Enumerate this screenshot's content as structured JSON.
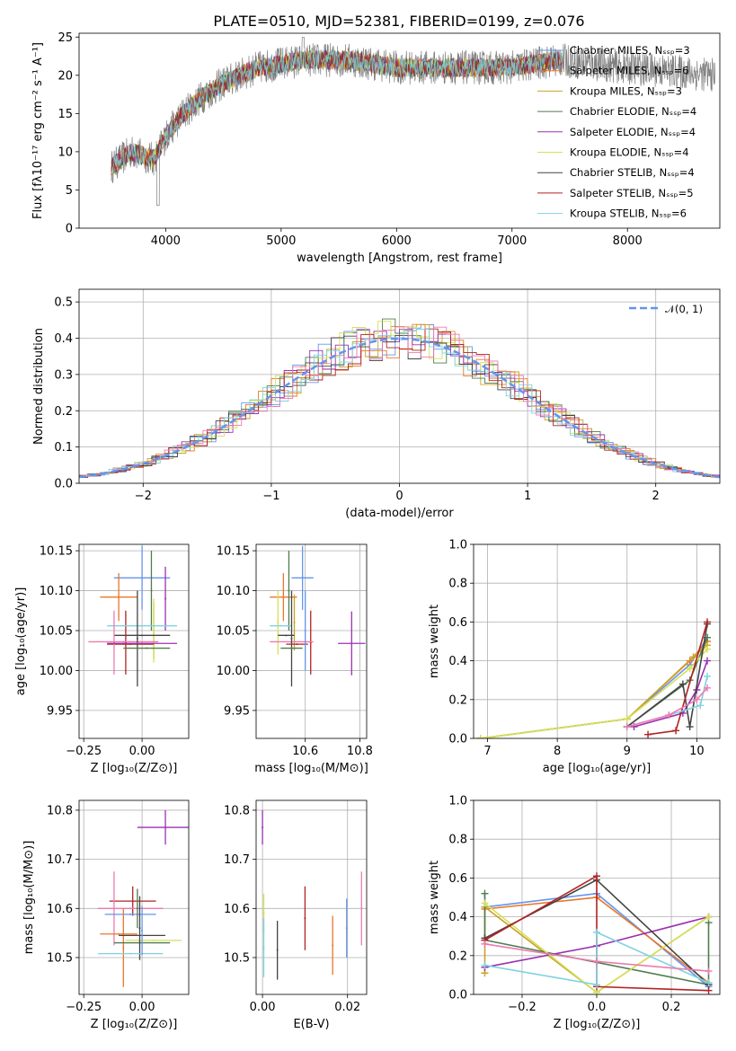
{
  "title": "PLATE=0510, MJD=52381, FIBERID=0199, z=0.076",
  "chart_data": [
    {
      "type": "line",
      "id": "spectrum",
      "xlabel": "wavelength [Angstrom, rest frame]",
      "ylabel": "Flux [fλ10⁻¹⁷ erg cm⁻² s⁻¹ A⁻¹]",
      "xlim": [
        3250,
        8800
      ],
      "ylim": [
        0,
        25.5
      ],
      "xticks": [
        4000,
        5000,
        6000,
        7000,
        8000
      ],
      "yticks": [
        0,
        5,
        10,
        15,
        20,
        25
      ],
      "data_xrange": [
        3530,
        7430
      ],
      "data_range_grey": [
        3530,
        8760
      ],
      "legend": [
        {
          "name": "Chabrier MILES, Nₛₛₚ=3",
          "color": "#6495ed"
        },
        {
          "name": "Salpeter MILES, Nₛₛₚ=6",
          "color": "#e9762b"
        },
        {
          "name": "Kroupa MILES, Nₛₛₚ=3",
          "color": "#c9a227"
        },
        {
          "name": "Chabrier ELODIE, Nₛₛₚ=4",
          "color": "#4f7c4f"
        },
        {
          "name": "Salpeter ELODIE, Nₛₛₚ=4",
          "color": "#9b30b0"
        },
        {
          "name": "Kroupa ELODIE, Nₛₛₚ=4",
          "color": "#d4e157"
        },
        {
          "name": "Chabrier STELIB, Nₛₛₚ=4",
          "color": "#444444"
        },
        {
          "name": "Salpeter STELIB, Nₛₛₚ=5",
          "color": "#b22222"
        },
        {
          "name": "Kroupa STELIB, Nₛₛₚ=6",
          "color": "#7fd3e0"
        }
      ],
      "legend_placement": "upper right",
      "continuum": [
        [
          3530,
          8
        ],
        [
          3700,
          10
        ],
        [
          3900,
          9
        ],
        [
          4000,
          12
        ],
        [
          4150,
          15
        ],
        [
          4300,
          17
        ],
        [
          4500,
          19
        ],
        [
          4800,
          21
        ],
        [
          5200,
          22
        ],
        [
          5600,
          22
        ],
        [
          6000,
          21
        ],
        [
          6500,
          21
        ],
        [
          7000,
          21
        ],
        [
          7400,
          22
        ],
        [
          7700,
          21.5
        ],
        [
          8000,
          21
        ],
        [
          8400,
          20.5
        ],
        [
          8760,
          20
        ]
      ]
    },
    {
      "type": "area",
      "id": "residual_histogram",
      "xlabel": "(data-model)/error",
      "ylabel": "Normed distribution",
      "xlim": [
        -2.5,
        2.5
      ],
      "ylim": [
        0,
        0.535
      ],
      "xticks": [
        -2,
        -1,
        0,
        1,
        2
      ],
      "xtick_labels": [
        "−2",
        "−1",
        "0",
        "1",
        "2"
      ],
      "yticks": [
        0.0,
        0.1,
        0.2,
        0.3,
        0.4,
        0.5
      ],
      "ytick_labels": [
        "0.0",
        "0.1",
        "0.2",
        "0.3",
        "0.4",
        "0.5"
      ],
      "grid": true,
      "legend": [
        {
          "name": "𝒩(0, 1)",
          "color": "#6495ed",
          "style": "dashed"
        }
      ],
      "legend_placement": "upper right",
      "bin_width": 0.1
    },
    {
      "type": "scatter",
      "id": "age_vs_Z",
      "xlabel": "Z [log₁₀(Z/Z⊙)]",
      "ylabel": "age  [log₁₀(age/yr)]",
      "xlim": [
        -0.27,
        0.2
      ],
      "ylim": [
        9.915,
        10.158
      ],
      "xticks": [
        -0.25,
        0.0
      ],
      "xtick_labels": [
        "−0.25",
        "0.00"
      ],
      "yticks": [
        9.95,
        10.0,
        10.05,
        10.1,
        10.15
      ],
      "ytick_labels": [
        "9.95",
        "10.00",
        "10.05",
        "10.10",
        "10.15"
      ],
      "grid": true,
      "points": [
        {
          "x": 0.0,
          "xerr": 0.12,
          "y": 10.116,
          "yerr": 0.04,
          "color": "#6495ed"
        },
        {
          "x": -0.1,
          "xerr": 0.08,
          "y": 10.092,
          "yerr": 0.03,
          "color": "#e9762b"
        },
        {
          "x": 0.05,
          "xerr": 0.0,
          "y": 10.05,
          "yerr": 0.035,
          "color": "#c9a227"
        },
        {
          "x": 0.04,
          "xerr": 0.0,
          "y": 10.1,
          "yerr": 0.05,
          "color": "#4f7c4f"
        },
        {
          "x": 0.1,
          "xerr": 0.0,
          "y": 10.09,
          "yerr": 0.04,
          "color": "#9b30b0"
        },
        {
          "x": 0.05,
          "xerr": 0.0,
          "y": 10.05,
          "yerr": 0.04,
          "color": "#d4e157"
        },
        {
          "x": 0.0,
          "xerr": 0.12,
          "y": 10.044,
          "yerr": 0.0,
          "color": "#444444"
        },
        {
          "x": -0.05,
          "xerr": 0.1,
          "y": 10.033,
          "yerr": 0.0,
          "color": "#b22222"
        },
        {
          "x": -0.07,
          "xerr": 0.0,
          "y": 10.035,
          "yerr": 0.04,
          "color": "#b22222"
        },
        {
          "x": 0.0,
          "xerr": 0.15,
          "y": 10.056,
          "yerr": 0.0,
          "color": "#7fd3e0"
        },
        {
          "x": -0.12,
          "xerr": 0.0,
          "y": 10.035,
          "yerr": 0.04,
          "color": "#ec7ab0"
        },
        {
          "x": -0.08,
          "xerr": 0.15,
          "y": 10.036,
          "yerr": 0.0,
          "color": "#ec7ab0"
        },
        {
          "x": -0.02,
          "xerr": 0.0,
          "y": 10.04,
          "yerr": 0.06,
          "color": "#444444"
        },
        {
          "x": 0.02,
          "xerr": 0.1,
          "y": 10.028,
          "yerr": 0.0,
          "color": "#4f7c4f"
        },
        {
          "x": 0.0,
          "xerr": 0.15,
          "y": 10.034,
          "yerr": 0.0,
          "color": "#9b30b0"
        }
      ]
    },
    {
      "type": "scatter",
      "id": "age_vs_mass",
      "xlabel": "mass [log₁₀(M/M⊙)]",
      "ylabel": "",
      "xlim": [
        10.42,
        10.825
      ],
      "ylim": [
        9.915,
        10.158
      ],
      "xticks": [
        10.6,
        10.8
      ],
      "xtick_labels": [
        "10.6",
        "10.8"
      ],
      "yticks": [
        9.95,
        10.0,
        10.05,
        10.1,
        10.15
      ],
      "ytick_labels": [
        "9.95",
        "10.00",
        "10.05",
        "10.10",
        "10.15"
      ],
      "grid": true,
      "points": [
        {
          "x": 10.59,
          "xerr": 0.04,
          "y": 10.116,
          "yerr": 0.04,
          "color": "#6495ed"
        },
        {
          "x": 10.52,
          "xerr": 0.05,
          "y": 10.092,
          "yerr": 0.03,
          "color": "#e9762b"
        },
        {
          "x": 10.56,
          "xerr": 0.0,
          "y": 10.06,
          "yerr": 0.035,
          "color": "#c9a227"
        },
        {
          "x": 10.54,
          "xerr": 0.0,
          "y": 10.1,
          "yerr": 0.05,
          "color": "#4f7c4f"
        },
        {
          "x": 10.77,
          "xerr": 0.05,
          "y": 10.034,
          "yerr": 0.04,
          "color": "#9b30b0"
        },
        {
          "x": 10.5,
          "xerr": 0.0,
          "y": 10.06,
          "yerr": 0.04,
          "color": "#d4e157"
        },
        {
          "x": 10.53,
          "xerr": 0.03,
          "y": 10.044,
          "yerr": 0.0,
          "color": "#444444"
        },
        {
          "x": 10.57,
          "xerr": 0.04,
          "y": 10.033,
          "yerr": 0.0,
          "color": "#b22222"
        },
        {
          "x": 10.62,
          "xerr": 0.0,
          "y": 10.035,
          "yerr": 0.04,
          "color": "#b22222"
        },
        {
          "x": 10.51,
          "xerr": 0.04,
          "y": 10.056,
          "yerr": 0.0,
          "color": "#7fd3e0"
        },
        {
          "x": 10.55,
          "xerr": 0.08,
          "y": 10.036,
          "yerr": 0.0,
          "color": "#ec7ab0"
        },
        {
          "x": 10.55,
          "xerr": 0.0,
          "y": 10.04,
          "yerr": 0.06,
          "color": "#444444"
        },
        {
          "x": 10.55,
          "xerr": 0.04,
          "y": 10.028,
          "yerr": 0.0,
          "color": "#4f7c4f"
        },
        {
          "x": 10.6,
          "xerr": 0.0,
          "y": 10.05,
          "yerr": 0.05,
          "color": "#6495ed"
        }
      ]
    },
    {
      "type": "line",
      "id": "massweight_vs_age",
      "xlabel": "age  [log₁₀(age/yr)]",
      "ylabel": "mass weight",
      "xlim": [
        6.8,
        10.33
      ],
      "ylim": [
        0.0,
        1.0
      ],
      "xticks": [
        7,
        8,
        9,
        10
      ],
      "xtick_labels": [
        "7",
        "8",
        "9",
        "10"
      ],
      "yticks": [
        0.0,
        0.2,
        0.4,
        0.6,
        0.8,
        1.0
      ],
      "ytick_labels": [
        "0.0",
        "0.2",
        "0.4",
        "0.6",
        "0.8",
        "1.0"
      ],
      "grid": true,
      "series": [
        {
          "color": "#6495ed",
          "x": [
            6.9,
            9.0,
            9.9,
            10.15
          ],
          "y": [
            0.0,
            0.1,
            0.38,
            0.52
          ]
        },
        {
          "color": "#e9762b",
          "x": [
            6.9,
            9.0,
            9.9,
            10.15
          ],
          "y": [
            0.0,
            0.1,
            0.4,
            0.5
          ]
        },
        {
          "color": "#c9a227",
          "x": [
            6.9,
            9.0,
            9.95,
            10.15
          ],
          "y": [
            0.0,
            0.1,
            0.42,
            0.48
          ]
        },
        {
          "color": "#4f7c4f",
          "x": [
            9.0,
            9.9,
            10.15
          ],
          "y": [
            0.06,
            0.3,
            0.52
          ]
        },
        {
          "color": "#9b30b0",
          "x": [
            9.1,
            9.8,
            10.0,
            10.15
          ],
          "y": [
            0.06,
            0.13,
            0.25,
            0.4
          ]
        },
        {
          "color": "#d4e157",
          "x": [
            6.9,
            9.0,
            9.9,
            10.15
          ],
          "y": [
            0.0,
            0.1,
            0.36,
            0.46
          ]
        },
        {
          "color": "#444444",
          "x": [
            9.0,
            9.8,
            9.9,
            10.15
          ],
          "y": [
            0.06,
            0.28,
            0.06,
            0.59
          ]
        },
        {
          "color": "#b22222",
          "x": [
            9.3,
            9.7,
            10.15
          ],
          "y": [
            0.02,
            0.04,
            0.6
          ]
        },
        {
          "color": "#7fd3e0",
          "x": [
            9.0,
            9.6,
            10.05,
            10.15
          ],
          "y": [
            0.06,
            0.12,
            0.17,
            0.32
          ]
        },
        {
          "color": "#ec7ab0",
          "x": [
            9.0,
            9.6,
            10.0,
            10.15
          ],
          "y": [
            0.06,
            0.12,
            0.2,
            0.26
          ]
        }
      ]
    },
    {
      "type": "scatter",
      "id": "mass_vs_Z",
      "xlabel": "Z [log₁₀(Z/Z⊙)]",
      "ylabel": "mass [log₁₀(M/M⊙)]",
      "xlim": [
        -0.27,
        0.2
      ],
      "ylim": [
        10.425,
        10.82
      ],
      "xticks": [
        -0.25,
        0.0
      ],
      "xtick_labels": [
        "−0.25",
        "0.00"
      ],
      "yticks": [
        10.5,
        10.6,
        10.7,
        10.8
      ],
      "ytick_labels": [
        "10.5",
        "10.6",
        "10.7",
        "10.8"
      ],
      "grid": true,
      "points": [
        {
          "x": 0.1,
          "xerr": 0.12,
          "y": 10.765,
          "yerr": 0.035,
          "color": "#9b30b0"
        },
        {
          "x": -0.04,
          "xerr": 0.1,
          "y": 10.615,
          "yerr": 0.03,
          "color": "#b22222"
        },
        {
          "x": -0.12,
          "xerr": 0.0,
          "y": 10.6,
          "yerr": 0.075,
          "color": "#ec7ab0"
        },
        {
          "x": -0.05,
          "xerr": 0.14,
          "y": 10.6,
          "yerr": 0.0,
          "color": "#ec7ab0"
        },
        {
          "x": -0.05,
          "xerr": 0.11,
          "y": 10.588,
          "yerr": 0.0,
          "color": "#6495ed"
        },
        {
          "x": -0.02,
          "xerr": 0.0,
          "y": 10.6,
          "yerr": 0.04,
          "color": "#4f7c4f"
        },
        {
          "x": -0.1,
          "xerr": 0.08,
          "y": 10.548,
          "yerr": 0.0,
          "color": "#e9762b"
        },
        {
          "x": -0.08,
          "xerr": 0.0,
          "y": 10.52,
          "yerr": 0.08,
          "color": "#e9762b"
        },
        {
          "x": 0.0,
          "xerr": 0.1,
          "y": 10.545,
          "yerr": 0.0,
          "color": "#444444"
        },
        {
          "x": 0.0,
          "xerr": 0.12,
          "y": 10.53,
          "yerr": 0.0,
          "color": "#4f7c4f"
        },
        {
          "x": 0.05,
          "xerr": 0.12,
          "y": 10.535,
          "yerr": 0.0,
          "color": "#d4e157"
        },
        {
          "x": -0.01,
          "xerr": 0.0,
          "y": 10.56,
          "yerr": 0.065,
          "color": "#444444"
        },
        {
          "x": -0.05,
          "xerr": 0.14,
          "y": 10.508,
          "yerr": 0.0,
          "color": "#7fd3e0"
        },
        {
          "x": 0.0,
          "xerr": 0.0,
          "y": 10.555,
          "yerr": 0.05,
          "color": "#6495ed"
        }
      ]
    },
    {
      "type": "scatter",
      "id": "mass_vs_ebv",
      "xlabel": "E(B-V)",
      "ylabel": "",
      "xlim": [
        -0.0015,
        0.0245
      ],
      "ylim": [
        10.425,
        10.82
      ],
      "xticks": [
        0.0,
        0.02
      ],
      "xtick_labels": [
        "0.00",
        "0.02"
      ],
      "yticks": [
        10.5,
        10.6,
        10.7,
        10.8
      ],
      "ytick_labels": [
        "10.5",
        "10.6",
        "10.7",
        "10.8"
      ],
      "grid": true,
      "points": [
        {
          "x": 0.0,
          "xerr": 0.0,
          "y": 10.765,
          "yerr": 0.035,
          "color": "#9b30b0"
        },
        {
          "x": 0.0003,
          "xerr": 0.0,
          "y": 10.59,
          "yerr": 0.04,
          "color": "#d4e157"
        },
        {
          "x": 0.0035,
          "xerr": 0.0,
          "y": 10.515,
          "yerr": 0.06,
          "color": "#444444"
        },
        {
          "x": 0.01,
          "xerr": 0.0,
          "y": 10.58,
          "yerr": 0.065,
          "color": "#b22222"
        },
        {
          "x": 0.0165,
          "xerr": 0.0,
          "y": 10.525,
          "yerr": 0.06,
          "color": "#e9762b"
        },
        {
          "x": 0.0198,
          "xerr": 0.0,
          "y": 10.56,
          "yerr": 0.06,
          "color": "#6495ed"
        },
        {
          "x": 0.0233,
          "xerr": 0.0,
          "y": 10.6,
          "yerr": 0.075,
          "color": "#ec7ab0"
        },
        {
          "x": 0.0003,
          "xerr": 0.0,
          "y": 10.52,
          "yerr": 0.06,
          "color": "#7fd3e0"
        }
      ]
    },
    {
      "type": "line",
      "id": "massweight_vs_Z",
      "xlabel": "Z [log₁₀(Z/Z⊙)]",
      "ylabel": "mass weight",
      "xlim": [
        -0.33,
        0.33
      ],
      "ylim": [
        0.0,
        1.0
      ],
      "xticks": [
        -0.2,
        0.0,
        0.2
      ],
      "xtick_labels": [
        "−0.2",
        "0.0",
        "0.2"
      ],
      "yticks": [
        0.0,
        0.2,
        0.4,
        0.6,
        0.8,
        1.0
      ],
      "ytick_labels": [
        "0.0",
        "0.2",
        "0.4",
        "0.6",
        "0.8",
        "1.0"
      ],
      "grid": true,
      "series": [
        {
          "color": "#6495ed",
          "x": [
            -0.3,
            0.0,
            0.3
          ],
          "y": [
            0.45,
            0.52,
            0.04
          ]
        },
        {
          "color": "#e9762b",
          "x": [
            -0.3,
            0.0,
            0.3
          ],
          "y": [
            0.44,
            0.5,
            0.06
          ]
        },
        {
          "color": "#c9a227",
          "x": [
            -0.3,
            -0.3,
            0.0,
            0.3
          ],
          "y": [
            0.11,
            0.45,
            0.01,
            0.4
          ]
        },
        {
          "color": "#4f7c4f",
          "x": [
            -0.3,
            -0.3,
            0.3,
            0.3
          ],
          "y": [
            0.52,
            0.28,
            0.05,
            0.37
          ]
        },
        {
          "color": "#9b30b0",
          "x": [
            -0.3,
            0.0,
            0.3
          ],
          "y": [
            0.14,
            0.25,
            0.4
          ]
        },
        {
          "color": "#d4e157",
          "x": [
            -0.3,
            0.0,
            0.3
          ],
          "y": [
            0.47,
            0.01,
            0.4
          ]
        },
        {
          "color": "#444444",
          "x": [
            -0.3,
            0.0,
            0.3
          ],
          "y": [
            0.29,
            0.59,
            0.05
          ]
        },
        {
          "color": "#b22222",
          "x": [
            -0.3,
            0.0,
            0.0,
            0.3
          ],
          "y": [
            0.28,
            0.61,
            0.04,
            0.02
          ]
        },
        {
          "color": "#7fd3e0",
          "x": [
            -0.3,
            0.0,
            0.0,
            0.3
          ],
          "y": [
            0.15,
            0.05,
            0.32,
            0.06
          ]
        },
        {
          "color": "#ec7ab0",
          "x": [
            -0.3,
            0.0,
            0.3
          ],
          "y": [
            0.26,
            0.17,
            0.12
          ]
        }
      ]
    }
  ]
}
